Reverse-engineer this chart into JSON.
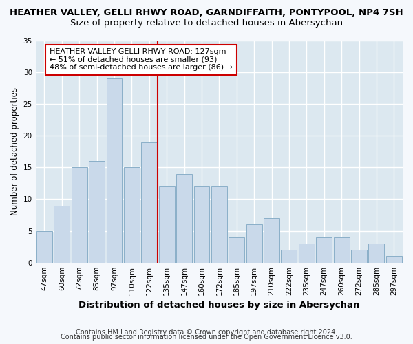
{
  "title": "HEATHER VALLEY, GELLI RHWY ROAD, GARNDIFFAITH, PONTYPOOL, NP4 7SH",
  "subtitle": "Size of property relative to detached houses in Abersychan",
  "xlabel": "Distribution of detached houses by size in Abersychan",
  "ylabel": "Number of detached properties",
  "categories": [
    "47sqm",
    "60sqm",
    "72sqm",
    "85sqm",
    "97sqm",
    "110sqm",
    "122sqm",
    "135sqm",
    "147sqm",
    "160sqm",
    "172sqm",
    "185sqm",
    "197sqm",
    "210sqm",
    "222sqm",
    "235sqm",
    "247sqm",
    "260sqm",
    "272sqm",
    "285sqm",
    "297sqm"
  ],
  "values": [
    5,
    9,
    15,
    16,
    29,
    15,
    19,
    12,
    14,
    12,
    12,
    4,
    6,
    7,
    2,
    3,
    4,
    4,
    2,
    3,
    1
  ],
  "bar_color": "#c9d9ea",
  "bar_edge_color": "#8aafc8",
  "vline_x": 6.5,
  "vline_color": "#cc0000",
  "annotation_title": "HEATHER VALLEY GELLI RHWY ROAD: 127sqm",
  "annotation_line1": "← 51% of detached houses are smaller (93)",
  "annotation_line2": "48% of semi-detached houses are larger (86) →",
  "annotation_box_color": "#ffffff",
  "annotation_box_edge_color": "#cc0000",
  "ylim": [
    0,
    35
  ],
  "yticks": [
    0,
    5,
    10,
    15,
    20,
    25,
    30,
    35
  ],
  "plot_bg_color": "#dce8f0",
  "fig_bg_color": "#f5f8fc",
  "grid_color": "#ffffff",
  "footer1": "Contains HM Land Registry data © Crown copyright and database right 2024.",
  "footer2": "Contains public sector information licensed under the Open Government Licence v3.0.",
  "title_fontsize": 9.5,
  "subtitle_fontsize": 9.5,
  "xlabel_fontsize": 9.5,
  "ylabel_fontsize": 8.5,
  "tick_fontsize": 7.5,
  "annotation_fontsize": 8,
  "footer_fontsize": 7
}
